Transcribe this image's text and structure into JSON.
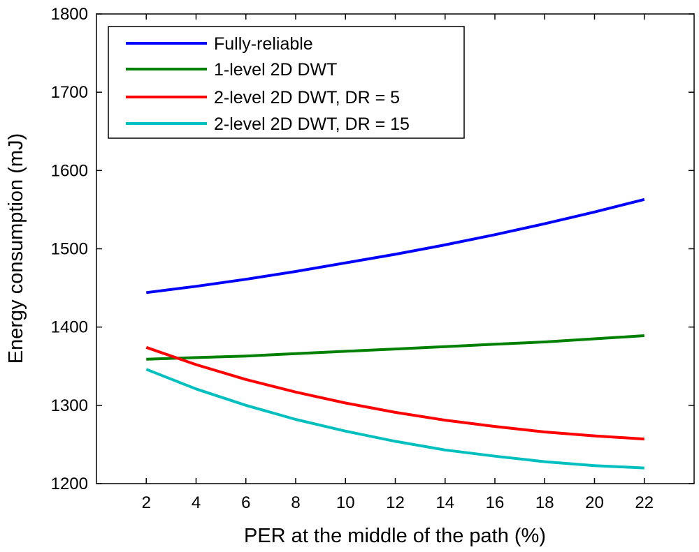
{
  "chart_data": {
    "type": "line",
    "title": "",
    "xlabel": "PER at the middle of the path (%)",
    "ylabel": "Energy consumption (mJ)",
    "xlim": [
      0,
      24
    ],
    "ylim": [
      1200,
      1800
    ],
    "x_ticks": [
      2,
      4,
      6,
      8,
      10,
      12,
      14,
      16,
      18,
      20,
      22
    ],
    "y_ticks": [
      1200,
      1300,
      1400,
      1500,
      1600,
      1700,
      1800
    ],
    "legend_position": "top-left",
    "x": [
      2,
      4,
      6,
      8,
      10,
      12,
      14,
      16,
      18,
      20,
      22
    ],
    "series": [
      {
        "name": "Fully-reliable",
        "color": "#0000ff",
        "values": [
          1444,
          1452,
          1461,
          1471,
          1482,
          1493,
          1505,
          1518,
          1532,
          1547,
          1563
        ]
      },
      {
        "name": "1-level 2D DWT",
        "color": "#008000",
        "values": [
          1359,
          1361,
          1363,
          1366,
          1369,
          1372,
          1375,
          1378,
          1381,
          1385,
          1389
        ]
      },
      {
        "name": "2-level 2D DWT, DR = 5",
        "color": "#ff0000",
        "values": [
          1374,
          1352,
          1333,
          1317,
          1303,
          1291,
          1281,
          1273,
          1266,
          1261,
          1257
        ]
      },
      {
        "name": "2-level 2D DWT, DR = 15",
        "color": "#00bfbf",
        "values": [
          1346,
          1321,
          1300,
          1282,
          1267,
          1254,
          1243,
          1235,
          1228,
          1223,
          1220
        ]
      }
    ]
  }
}
